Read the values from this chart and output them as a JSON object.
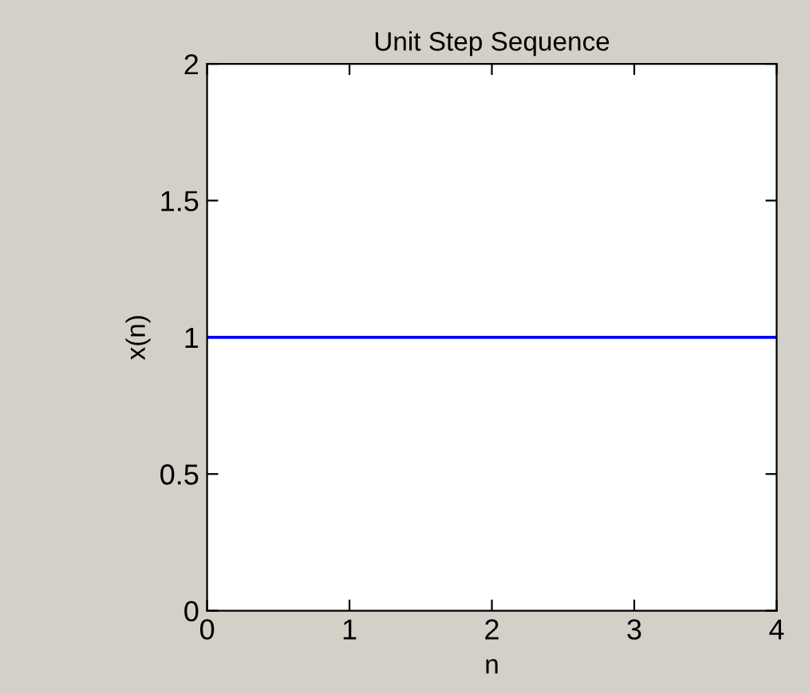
{
  "chart_data": {
    "type": "line",
    "title": "Unit Step Sequence",
    "xlabel": "n",
    "ylabel": "x(n)",
    "x": [
      0,
      4
    ],
    "series": [
      {
        "color": "#0000ff",
        "values": [
          1,
          1
        ]
      }
    ],
    "xlim": [
      0,
      4
    ],
    "xticks": [
      0,
      1,
      2,
      3,
      4
    ],
    "ylim": [
      0,
      2
    ],
    "yticks": [
      0,
      0.5,
      1,
      1.5,
      2
    ],
    "grid": false
  }
}
